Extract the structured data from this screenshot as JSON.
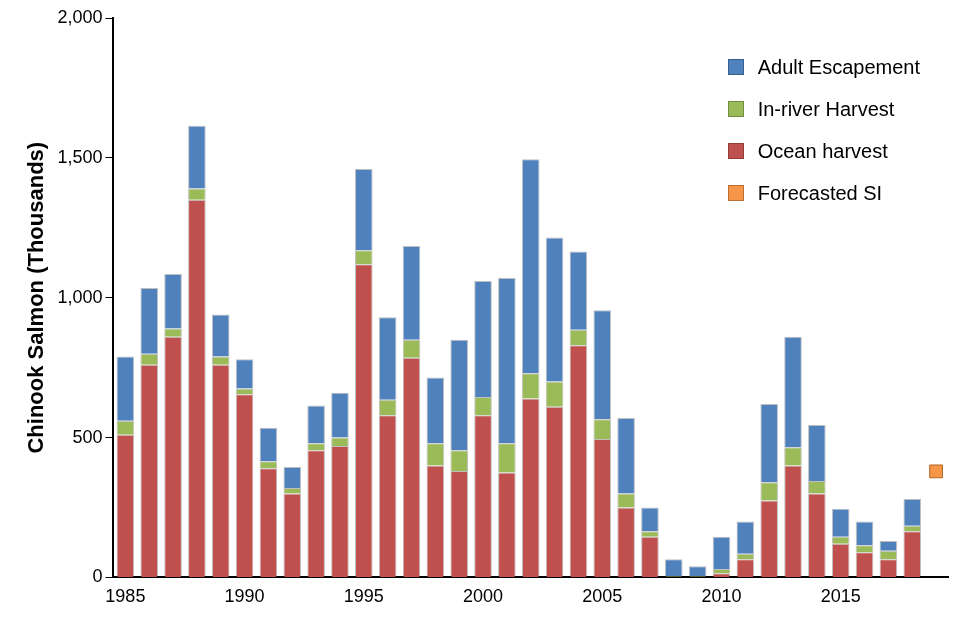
{
  "chart_data": {
    "type": "bar",
    "y_label": "Chinook Salmon (Thousands)",
    "categories": [
      "1985",
      null,
      null,
      null,
      null,
      "1990",
      null,
      null,
      null,
      null,
      "1995",
      null,
      null,
      null,
      null,
      "2000",
      null,
      null,
      null,
      null,
      "2005",
      null,
      null,
      null,
      null,
      "2010",
      null,
      null,
      null,
      null,
      "2015",
      null,
      null,
      null,
      null
    ],
    "series": [
      {
        "name": "Ocean harvest",
        "color": "#c0504d",
        "values": [
          510,
          760,
          860,
          1350,
          760,
          655,
          390,
          300,
          455,
          470,
          1120,
          580,
          785,
          400,
          380,
          580,
          375,
          640,
          610,
          830,
          495,
          250,
          145,
          0,
          0,
          15,
          65,
          275,
          400,
          300,
          120,
          90,
          65,
          165,
          null
        ]
      },
      {
        "name": "In-river Harvest",
        "color": "#9bbb59",
        "values": [
          50,
          40,
          30,
          40,
          30,
          20,
          25,
          20,
          25,
          30,
          50,
          55,
          65,
          80,
          75,
          65,
          105,
          90,
          90,
          55,
          70,
          50,
          20,
          5,
          5,
          15,
          20,
          65,
          65,
          45,
          25,
          25,
          30,
          20,
          null
        ]
      },
      {
        "name": "Adult Escapement",
        "color": "#4f81bd",
        "values": [
          230,
          235,
          195,
          225,
          150,
          105,
          120,
          75,
          135,
          160,
          290,
          295,
          335,
          235,
          395,
          415,
          590,
          765,
          515,
          280,
          390,
          270,
          85,
          60,
          35,
          115,
          115,
          280,
          395,
          200,
          100,
          85,
          35,
          95,
          null
        ]
      },
      {
        "name": "Forecasted SI",
        "color": "#f79646",
        "type": "line",
        "marker": "square",
        "line_style": "none",
        "values": [
          null,
          null,
          null,
          null,
          null,
          null,
          null,
          null,
          null,
          null,
          null,
          null,
          null,
          null,
          null,
          null,
          null,
          null,
          null,
          null,
          null,
          null,
          null,
          null,
          null,
          null,
          null,
          null,
          null,
          null,
          null,
          null,
          null,
          null,
          379
        ]
      }
    ],
    "stacked": true,
    "ylim": [
      0,
      2000
    ],
    "yticks": [
      0,
      500,
      {
        "value": 1000,
        "label": "1,000"
      },
      {
        "value": 1500,
        "label": "1,500"
      },
      {
        "value": 2000,
        "label": "2,000"
      }
    ],
    "grid": false,
    "legend": "upper right"
  }
}
